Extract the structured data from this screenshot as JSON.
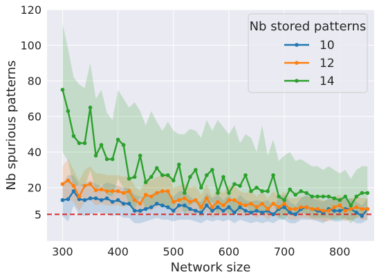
{
  "chart_data": {
    "type": "line",
    "xlabel": "Network size",
    "ylabel": "Nb spurious patterns",
    "xlim": [
      272,
      862
    ],
    "ylim": [
      -10,
      120
    ],
    "xticks": [
      300,
      400,
      500,
      600,
      700,
      800
    ],
    "yticks": [
      5,
      20,
      40,
      60,
      80,
      100,
      120
    ],
    "grid": true,
    "legend": {
      "title": "Nb stored patterns",
      "placement": "top-right"
    },
    "reference_line": {
      "y": 5,
      "color": "#d62728",
      "style": "dashed"
    },
    "x": [
      300,
      310,
      320,
      330,
      340,
      350,
      360,
      370,
      380,
      390,
      400,
      410,
      420,
      430,
      440,
      450,
      460,
      470,
      480,
      490,
      500,
      510,
      520,
      530,
      540,
      550,
      560,
      570,
      580,
      590,
      600,
      610,
      620,
      630,
      640,
      650,
      660,
      670,
      680,
      690,
      700,
      710,
      720,
      730,
      740,
      750,
      760,
      770,
      780,
      790,
      800,
      810,
      820,
      830,
      840,
      850
    ],
    "series": [
      {
        "name": "10",
        "color": "#1f77b4",
        "values": [
          13,
          13.5,
          18,
          13.5,
          13,
          14,
          14,
          13,
          14,
          12,
          13,
          11,
          11,
          7,
          7,
          8,
          9,
          11,
          10,
          9,
          7,
          10,
          10,
          8,
          7,
          6,
          10,
          7,
          9,
          7,
          9,
          6,
          9,
          7,
          6,
          7,
          6,
          7,
          5,
          8,
          9,
          6,
          5,
          8,
          9,
          8,
          7,
          6,
          8,
          7,
          7,
          8,
          8,
          6,
          4,
          8
        ],
        "lower": [
          4,
          1,
          10,
          5,
          4,
          5,
          6,
          6,
          5,
          4,
          5,
          3,
          3,
          0,
          0,
          1,
          2,
          3,
          2,
          2,
          1,
          2,
          2,
          2,
          1,
          0,
          2,
          1,
          2,
          1,
          2,
          0,
          2,
          1,
          0,
          1,
          0,
          1,
          0,
          2,
          2,
          0,
          0,
          2,
          2,
          2,
          1,
          0,
          2,
          1,
          1,
          2,
          2,
          0,
          0,
          2
        ],
        "upper": [
          22,
          27,
          27,
          22,
          22,
          24,
          22,
          21,
          23,
          22,
          21,
          20,
          20,
          16,
          15,
          15,
          16,
          18,
          18,
          17,
          15,
          18,
          18,
          15,
          13,
          12,
          17,
          14,
          16,
          13,
          16,
          12,
          16,
          13,
          12,
          13,
          12,
          13,
          10,
          14,
          16,
          12,
          10,
          14,
          16,
          14,
          13,
          12,
          14,
          13,
          13,
          14,
          14,
          12,
          10,
          14
        ]
      },
      {
        "name": "12",
        "color": "#ff7f0e",
        "values": [
          22,
          24,
          21,
          15,
          21,
          22,
          18.5,
          19,
          18,
          18,
          18,
          17,
          18,
          13,
          11,
          16,
          15,
          17,
          18,
          18,
          12,
          13,
          14,
          12,
          13,
          9,
          14,
          9,
          12,
          10,
          13,
          13,
          11,
          10,
          11,
          9,
          11,
          8,
          11,
          9,
          11,
          8,
          8,
          9,
          9,
          8,
          8,
          7,
          7,
          9,
          10,
          7,
          8,
          9,
          8,
          8
        ],
        "lower": [
          12,
          14,
          12,
          7,
          12,
          13,
          10,
          11,
          10,
          10,
          10,
          9,
          10,
          6,
          5,
          8,
          7,
          9,
          10,
          10,
          5,
          6,
          7,
          5,
          6,
          3,
          7,
          3,
          5,
          4,
          6,
          6,
          4,
          4,
          5,
          3,
          5,
          2,
          5,
          3,
          5,
          2,
          2,
          3,
          3,
          2,
          2,
          1,
          1,
          3,
          4,
          1,
          2,
          3,
          2,
          2
        ],
        "upper": [
          32,
          36,
          30,
          24,
          30,
          32,
          28,
          28,
          27,
          27,
          27,
          26,
          27,
          21,
          18,
          25,
          24,
          26,
          27,
          28,
          20,
          21,
          22,
          20,
          21,
          16,
          22,
          15,
          20,
          17,
          21,
          21,
          18,
          17,
          18,
          15,
          18,
          14,
          18,
          15,
          18,
          14,
          14,
          15,
          15,
          14,
          14,
          13,
          13,
          15,
          16,
          13,
          14,
          15,
          14,
          14
        ]
      },
      {
        "name": "14",
        "color": "#2ca02c",
        "values": [
          75,
          63,
          49,
          45,
          45,
          65,
          38,
          44,
          36,
          36,
          47,
          44,
          25,
          26,
          38,
          23,
          26,
          31,
          27,
          27,
          24,
          33,
          17,
          26,
          30,
          20,
          27,
          30,
          17,
          26,
          17,
          22,
          21,
          27,
          18,
          20,
          18,
          18,
          27,
          15,
          13,
          19,
          16,
          18,
          17,
          15,
          15,
          15,
          15,
          14,
          13,
          15,
          10,
          15,
          17,
          17
        ],
        "lower": [
          40,
          35,
          20,
          22,
          20,
          30,
          18,
          22,
          16,
          15,
          25,
          20,
          10,
          8,
          15,
          8,
          10,
          12,
          10,
          10,
          8,
          14,
          4,
          10,
          12,
          6,
          10,
          12,
          4,
          10,
          4,
          7,
          6,
          11,
          5,
          7,
          5,
          5,
          11,
          3,
          2,
          6,
          4,
          6,
          5,
          3,
          3,
          3,
          3,
          2,
          2,
          3,
          0,
          3,
          5,
          5
        ],
        "upper": [
          112,
          98,
          82,
          78,
          76,
          90,
          70,
          75,
          62,
          58,
          75,
          70,
          65,
          68,
          63,
          55,
          63,
          57,
          52,
          57,
          52,
          50,
          50,
          53,
          52,
          48,
          58,
          52,
          58,
          54,
          50,
          55,
          45,
          50,
          48,
          40,
          55,
          38,
          47,
          35,
          38,
          40,
          35,
          36,
          34,
          32,
          32,
          30,
          32,
          30,
          28,
          30,
          25,
          30,
          32,
          32
        ]
      }
    ]
  }
}
